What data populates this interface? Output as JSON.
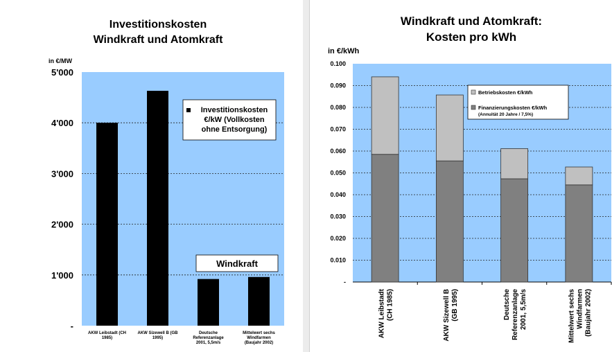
{
  "chart_data": [
    {
      "type": "bar",
      "title_lines": [
        "Investitionskosten",
        "Windkraft und Atomkraft"
      ],
      "ylabel": "in €/MW",
      "ylim": [
        0,
        5000
      ],
      "yticks": [
        "-",
        "1'000",
        "2'000",
        "3'000",
        "4'000",
        "5'000"
      ],
      "categories": [
        [
          "AKW Leibstadt (CH",
          "1985)"
        ],
        [
          "AKW Sizewell B (GB",
          "1995)"
        ],
        [
          "Deutsche",
          "Referenzanlage",
          "2001, 5,5m/s"
        ],
        [
          "Mittelwert sechs",
          "Windfarmen",
          "(Baujahr 2002)"
        ]
      ],
      "series": [
        {
          "name": "Investitionskosten €/kW (Vollkosten ohne Entsorgung)",
          "values": [
            4000,
            4630,
            920,
            960
          ],
          "color": "#000000"
        }
      ],
      "legend_lines": [
        "Investitionskosten",
        "€/kW (Vollkosten",
        "ohne Entsorgung)"
      ],
      "annotation": "Windkraft",
      "grid": true,
      "plot_bg": "#99ccff"
    },
    {
      "type": "bar",
      "stacked": true,
      "title_lines": [
        "Windkraft und Atomkraft:",
        "Kosten pro kWh"
      ],
      "ylabel": "in €/kWh",
      "ylim": [
        0,
        0.1
      ],
      "yticks": [
        "-",
        "0.010",
        "0.020",
        "0.030",
        "0.040",
        "0.050",
        "0.060",
        "0.070",
        "0.080",
        "0.090",
        "0.100"
      ],
      "categories": [
        [
          "AKW Leibstadt",
          "(CH 1985)"
        ],
        [
          "AKW Sizewell B",
          "(GB 1995)"
        ],
        [
          "Deutsche",
          "Referenzanlage",
          "2001, 5,5m/s"
        ],
        [
          "Mittelwert sechs",
          "Windfarmen",
          "(Baujahr 2002)"
        ]
      ],
      "series": [
        {
          "name": "Finanzierungskosten €/kWh",
          "values": [
            0.0585,
            0.0555,
            0.0473,
            0.0445
          ],
          "color": "#808080"
        },
        {
          "name": "Betriebskosten €/kWh",
          "values": [
            0.0355,
            0.0302,
            0.0138,
            0.0082
          ],
          "color": "#c0c0c0"
        }
      ],
      "legend": [
        {
          "lines": [
            "Betriebskosten €/kWh"
          ],
          "color": "#c0c0c0"
        },
        {
          "lines": [
            "Finanzierungskosten €/kWh",
            "(Annuität 20 Jahre / 7,5%)"
          ],
          "color": "#808080"
        }
      ],
      "grid": true,
      "plot_bg": "#99ccff"
    }
  ]
}
